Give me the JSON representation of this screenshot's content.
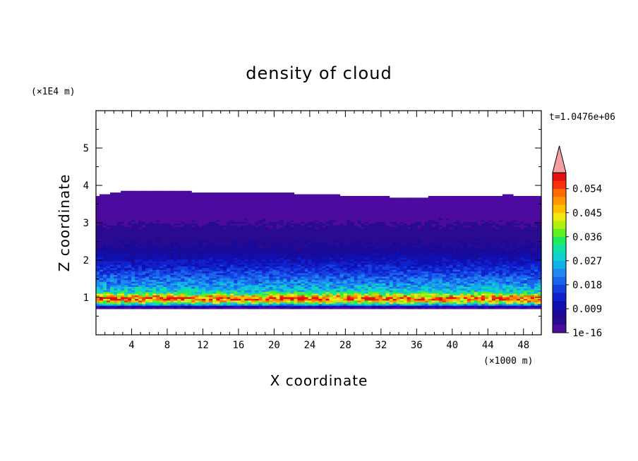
{
  "chart_data": {
    "type": "heatmap",
    "title": "density of cloud",
    "xlabel": "X coordinate",
    "ylabel": "Z coordinate",
    "x_unit": "(×1000 m)",
    "y_unit": "(×1E4 m)",
    "time_label": "t=1.0476e+06",
    "xlim": [
      0,
      50
    ],
    "ylim": [
      0,
      6
    ],
    "x_ticks": [
      4,
      8,
      12,
      16,
      20,
      24,
      28,
      32,
      36,
      40,
      44,
      48
    ],
    "y_ticks": [
      1,
      2,
      3,
      4,
      5
    ],
    "colorbar": {
      "labels": [
        "0.054",
        "0.045",
        "0.036",
        "0.027",
        "0.018",
        "0.009",
        "1e-16"
      ],
      "label_values": [
        0.054,
        0.045,
        0.036,
        0.027,
        0.018,
        0.009,
        0
      ],
      "levels": [
        0,
        0.003,
        0.006,
        0.009,
        0.012,
        0.015,
        0.018,
        0.021,
        0.024,
        0.027,
        0.03,
        0.033,
        0.036,
        0.039,
        0.042,
        0.045,
        0.048,
        0.051,
        0.054,
        0.057
      ],
      "colors": [
        "#4d0a9e",
        "#2a0a8f",
        "#1a0a9a",
        "#1010b0",
        "#1020cc",
        "#1540e0",
        "#1a64ec",
        "#1e88f0",
        "#10b0e8",
        "#10cfd0",
        "#10e0a8",
        "#20ea60",
        "#60f020",
        "#b0f010",
        "#f0e810",
        "#ffc000",
        "#ff9800",
        "#ff6a00",
        "#f83010",
        "#e01010"
      ],
      "overflow_color": "#f4a0a0"
    },
    "profile": {
      "z": [
        0.68,
        0.75,
        0.8,
        0.86,
        0.92,
        0.97,
        1.02,
        1.08,
        1.15,
        1.25,
        1.4,
        1.6,
        1.8,
        2.0,
        2.2,
        2.4,
        2.6,
        2.8,
        3.0,
        3.2,
        3.4,
        3.6,
        3.75
      ],
      "density": [
        0.001,
        0.004,
        0.022,
        0.036,
        0.048,
        0.056,
        0.05,
        0.04,
        0.03,
        0.026,
        0.022,
        0.018,
        0.014,
        0.011,
        0.008,
        0.006,
        0.005,
        0.004,
        0.003,
        0.002,
        0.0015,
        0.001,
        0.0005
      ]
    },
    "cloud_base_z": 0.7,
    "cloud_top_z": [
      3.7,
      3.85,
      3.85,
      3.8,
      3.8,
      3.8,
      3.75,
      3.72,
      3.7,
      3.65,
      3.68,
      3.7,
      3.72,
      3.7
    ]
  }
}
